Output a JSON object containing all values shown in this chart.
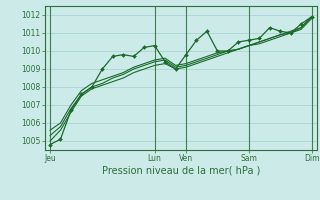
{
  "title": "",
  "xlabel": "Pression niveau de la mer( hPa )",
  "bg_color": "#cceae8",
  "grid_color": "#a8d5d0",
  "line_color": "#1a6b2a",
  "tick_color": "#2d6e3a",
  "label_color": "#2d6e3a",
  "ylim": [
    1004.5,
    1012.5
  ],
  "yticks": [
    1005,
    1006,
    1007,
    1008,
    1009,
    1010,
    1011,
    1012
  ],
  "day_labels": [
    "Jeu",
    "Lun",
    "Ven",
    "Sam",
    "Dim"
  ],
  "day_positions": [
    0,
    10,
    13,
    19,
    25
  ],
  "n_points": 26,
  "series1": [
    1004.8,
    1005.1,
    1006.7,
    1007.6,
    1008.0,
    1009.0,
    1009.7,
    1009.8,
    1009.7,
    1010.2,
    1010.3,
    1009.4,
    1009.0,
    1009.8,
    1010.6,
    1011.1,
    1010.0,
    1010.0,
    1010.5,
    1010.6,
    1010.7,
    1011.3,
    1011.1,
    1011.0,
    1011.5,
    1011.9
  ],
  "series2": [
    1005.0,
    1005.6,
    1006.6,
    1007.5,
    1007.9,
    1008.1,
    1008.3,
    1008.5,
    1008.8,
    1009.0,
    1009.2,
    1009.3,
    1009.0,
    1009.1,
    1009.3,
    1009.5,
    1009.7,
    1009.9,
    1010.1,
    1010.3,
    1010.4,
    1010.6,
    1010.8,
    1011.0,
    1011.2,
    1011.8
  ],
  "series3": [
    1005.3,
    1005.8,
    1006.8,
    1007.6,
    1008.0,
    1008.2,
    1008.5,
    1008.7,
    1009.0,
    1009.2,
    1009.4,
    1009.5,
    1009.1,
    1009.2,
    1009.4,
    1009.6,
    1009.8,
    1010.0,
    1010.1,
    1010.3,
    1010.5,
    1010.7,
    1010.9,
    1011.0,
    1011.3,
    1011.9
  ],
  "series4": [
    1005.6,
    1006.0,
    1007.0,
    1007.8,
    1008.2,
    1008.4,
    1008.6,
    1008.8,
    1009.1,
    1009.3,
    1009.5,
    1009.6,
    1009.2,
    1009.3,
    1009.5,
    1009.7,
    1009.9,
    1010.0,
    1010.1,
    1010.3,
    1010.5,
    1010.7,
    1010.9,
    1011.1,
    1011.3,
    1011.9
  ]
}
